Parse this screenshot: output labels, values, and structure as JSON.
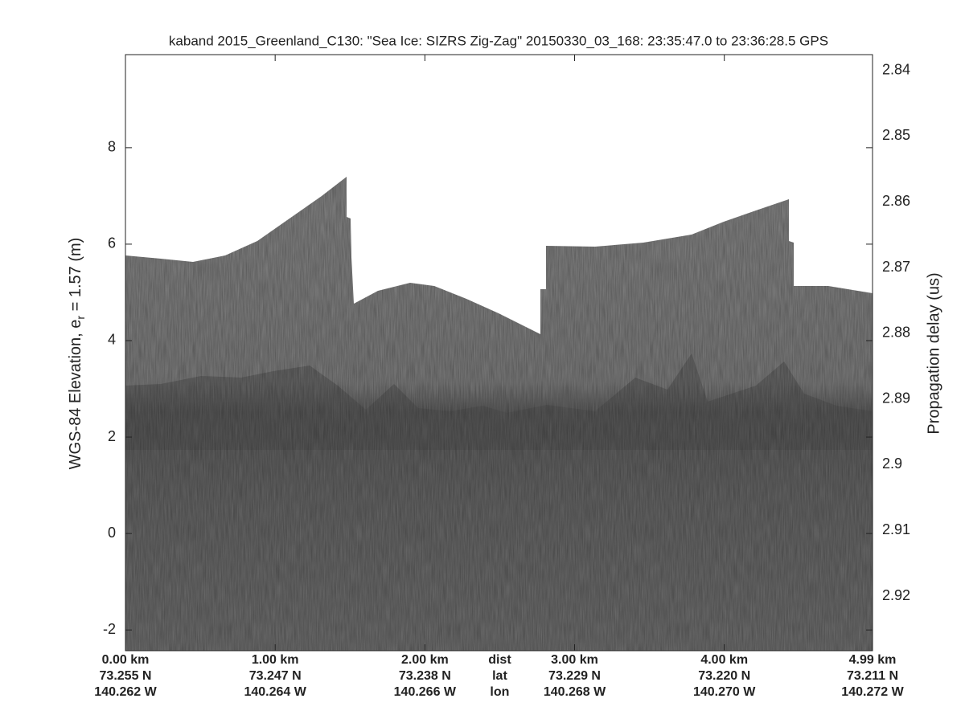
{
  "chart_data": {
    "type": "echogram",
    "title": "kaband 2015_Greenland_C130: \"Sea Ice: SIZRS Zig-Zag\"  20150330_03_168: 23:35:47.0 to 23:36:28.5 GPS",
    "ylabel": {
      "prefix": "WGS-84 Elevation, e",
      "subscript": "r",
      "suffix": " = 1.57 (m)"
    },
    "y2label": "Propagation delay (us)",
    "ylim": [
      -2.43,
      9.93
    ],
    "yticks": [
      -2,
      0,
      2,
      4,
      6,
      8
    ],
    "y2lim": [
      2.9283,
      2.8376
    ],
    "y2ticks": [
      2.84,
      2.85,
      2.86,
      2.87,
      2.88,
      2.89,
      2.9,
      2.91,
      2.92
    ],
    "xlim": [
      0,
      4.99
    ],
    "xticks": [
      {
        "value": 0,
        "label": "0.00 km"
      },
      {
        "value": 1,
        "label": "1.00 km"
      },
      {
        "value": 2,
        "label": "2.00 km"
      },
      {
        "value": 3,
        "label": "3.00 km"
      },
      {
        "value": 4,
        "label": "4.00 km"
      },
      {
        "value": 4.99,
        "label": "4.99 km"
      }
    ],
    "lat_labels": [
      "73.255 N",
      "73.247 N",
      "73.238 N",
      "73.229 N",
      "73.220 N",
      "73.211 N"
    ],
    "lon_labels": [
      "140.262 W",
      "140.264 W",
      "140.266 W",
      "140.268 W",
      "140.270 W",
      "140.272 W"
    ],
    "row_labels": [
      "dist",
      "lat",
      "lon"
    ]
  }
}
